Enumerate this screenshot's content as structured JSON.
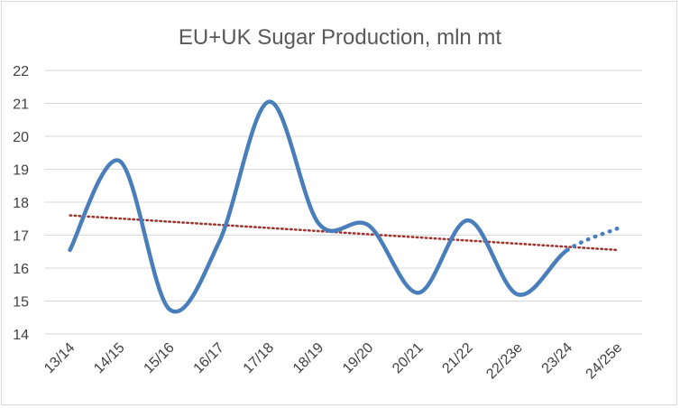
{
  "chart_data": {
    "type": "line",
    "title": "EU+UK Sugar Production, mln mt",
    "xlabel": "",
    "ylabel": "",
    "ylim": [
      14,
      22
    ],
    "yticks": [
      14,
      15,
      16,
      17,
      18,
      19,
      20,
      21,
      22
    ],
    "categories": [
      "13/14",
      "14/15",
      "15/16",
      "16/17",
      "17/18",
      "18/19",
      "19/20",
      "20/21",
      "21/22",
      "22/23e",
      "23/24",
      "24/25e"
    ],
    "series": [
      {
        "values": [
          16.55,
          19.25,
          14.75,
          16.8,
          21.05,
          17.35,
          17.3,
          15.25,
          17.45,
          15.2,
          16.55,
          17.2
        ],
        "color": "#4a7ebb",
        "style": "smooth-solid-then-dotted-last-segment"
      }
    ],
    "trendline": {
      "type": "linear",
      "start": 17.6,
      "end": 16.55,
      "color": "#a0302a",
      "style": "dotted"
    },
    "grid": true,
    "legend": "none"
  }
}
